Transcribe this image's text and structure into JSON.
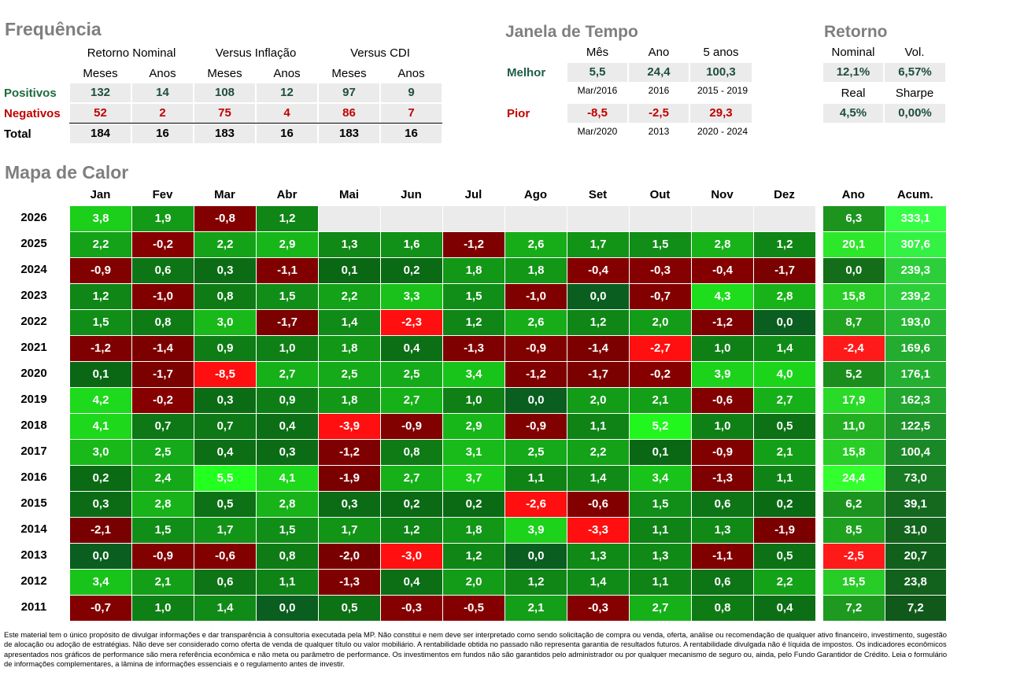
{
  "frequencia": {
    "title": "Frequência",
    "groups": [
      "Retorno Nominal",
      "Versus Inflação",
      "Versus CDI"
    ],
    "subheaders": [
      "Meses",
      "Anos",
      "Meses",
      "Anos",
      "Meses",
      "Anos"
    ],
    "rows": [
      {
        "label": "Positivos",
        "values": [
          "132",
          "14",
          "108",
          "12",
          "97",
          "9"
        ]
      },
      {
        "label": "Negativos",
        "values": [
          "52",
          "2",
          "75",
          "4",
          "86",
          "7"
        ]
      },
      {
        "label": "Total",
        "values": [
          "184",
          "16",
          "183",
          "16",
          "183",
          "16"
        ]
      }
    ]
  },
  "janela": {
    "title": "Janela de Tempo",
    "headers": [
      "Mês",
      "Ano",
      "5 anos"
    ],
    "melhor": {
      "label": "Melhor",
      "values": [
        "5,5",
        "24,4",
        "100,3"
      ],
      "dates": [
        "Mar/2016",
        "2016",
        "2015 - 2019"
      ]
    },
    "pior": {
      "label": "Pior",
      "values": [
        "-8,5",
        "-2,5",
        "29,3"
      ],
      "dates": [
        "Mar/2020",
        "2013",
        "2020 - 2024"
      ]
    }
  },
  "retorno": {
    "title": "Retorno",
    "h1": [
      "Nominal",
      "Vol."
    ],
    "v1": [
      "12,1%",
      "6,57%"
    ],
    "h2": [
      "Real",
      "Sharpe"
    ],
    "v2": [
      "4,5%",
      "0,00%"
    ]
  },
  "chart_data": {
    "type": "heatmap",
    "title": "Mapa de Calor",
    "columns": [
      "Jan",
      "Fev",
      "Mar",
      "Abr",
      "Mai",
      "Jun",
      "Jul",
      "Ago",
      "Set",
      "Out",
      "Nov",
      "Dez"
    ],
    "summary_columns": [
      "Ano",
      "Acum."
    ],
    "rows": [
      {
        "year": "2026",
        "values": [
          "3,8",
          "1,9",
          "-0,8",
          "1,2",
          "",
          "",
          "",
          "",
          "",
          "",
          "",
          ""
        ],
        "ano": "6,3",
        "acum": "333,1"
      },
      {
        "year": "2025",
        "values": [
          "2,2",
          "-0,2",
          "2,2",
          "2,9",
          "1,3",
          "1,6",
          "-1,2",
          "2,6",
          "1,7",
          "1,5",
          "2,8",
          "1,2"
        ],
        "ano": "20,1",
        "acum": "307,6"
      },
      {
        "year": "2024",
        "values": [
          "-0,9",
          "0,6",
          "0,3",
          "-1,1",
          "0,1",
          "0,2",
          "1,8",
          "1,8",
          "-0,4",
          "-0,3",
          "-0,4",
          "-1,7"
        ],
        "ano": "0,0",
        "acum": "239,3"
      },
      {
        "year": "2023",
        "values": [
          "1,2",
          "-1,0",
          "0,8",
          "1,5",
          "2,2",
          "3,3",
          "1,5",
          "-1,0",
          "0,0",
          "-0,7",
          "4,3",
          "2,8"
        ],
        "ano": "15,8",
        "acum": "239,2"
      },
      {
        "year": "2022",
        "values": [
          "1,5",
          "0,8",
          "3,0",
          "-1,7",
          "1,4",
          "-2,3",
          "1,2",
          "2,6",
          "1,2",
          "2,0",
          "-1,2",
          "0,0"
        ],
        "ano": "8,7",
        "acum": "193,0"
      },
      {
        "year": "2021",
        "values": [
          "-1,2",
          "-1,4",
          "0,9",
          "1,0",
          "1,8",
          "0,4",
          "-1,3",
          "-0,9",
          "-1,4",
          "-2,7",
          "1,0",
          "1,4"
        ],
        "ano": "-2,4",
        "acum": "169,6"
      },
      {
        "year": "2020",
        "values": [
          "0,1",
          "-1,7",
          "-8,5",
          "2,7",
          "2,5",
          "2,5",
          "3,4",
          "-1,2",
          "-1,7",
          "-0,2",
          "3,9",
          "4,0"
        ],
        "ano": "5,2",
        "acum": "176,1"
      },
      {
        "year": "2019",
        "values": [
          "4,2",
          "-0,2",
          "0,3",
          "0,9",
          "1,8",
          "2,7",
          "1,0",
          "0,0",
          "2,0",
          "2,1",
          "-0,6",
          "2,7"
        ],
        "ano": "17,9",
        "acum": "162,3"
      },
      {
        "year": "2018",
        "values": [
          "4,1",
          "0,7",
          "0,7",
          "0,4",
          "-3,9",
          "-0,9",
          "2,9",
          "-0,9",
          "1,1",
          "5,2",
          "1,0",
          "0,5"
        ],
        "ano": "11,0",
        "acum": "122,5"
      },
      {
        "year": "2017",
        "values": [
          "3,0",
          "2,5",
          "0,4",
          "0,3",
          "-1,2",
          "0,8",
          "3,1",
          "2,5",
          "2,2",
          "0,1",
          "-0,9",
          "2,1"
        ],
        "ano": "15,8",
        "acum": "100,4"
      },
      {
        "year": "2016",
        "values": [
          "0,2",
          "2,4",
          "5,5",
          "4,1",
          "-1,9",
          "2,7",
          "3,7",
          "1,1",
          "1,4",
          "3,4",
          "-1,3",
          "1,1"
        ],
        "ano": "24,4",
        "acum": "73,0"
      },
      {
        "year": "2015",
        "values": [
          "0,3",
          "2,8",
          "0,5",
          "2,8",
          "0,3",
          "0,2",
          "0,2",
          "-2,6",
          "-0,6",
          "1,5",
          "0,6",
          "0,2"
        ],
        "ano": "6,2",
        "acum": "39,1"
      },
      {
        "year": "2014",
        "values": [
          "-2,1",
          "1,5",
          "1,7",
          "1,5",
          "1,7",
          "1,2",
          "1,8",
          "3,9",
          "-3,3",
          "1,1",
          "1,3",
          "-1,9"
        ],
        "ano": "8,5",
        "acum": "31,0"
      },
      {
        "year": "2013",
        "values": [
          "0,0",
          "-0,9",
          "-0,6",
          "0,8",
          "-2,0",
          "-3,0",
          "1,2",
          "0,0",
          "1,3",
          "1,3",
          "-1,1",
          "0,5"
        ],
        "ano": "-2,5",
        "acum": "20,7"
      },
      {
        "year": "2012",
        "values": [
          "3,4",
          "2,1",
          "0,6",
          "1,1",
          "-1,3",
          "0,4",
          "2,0",
          "1,2",
          "1,4",
          "1,1",
          "0,6",
          "2,2"
        ],
        "ano": "15,5",
        "acum": "23,8"
      },
      {
        "year": "2011",
        "values": [
          "-0,7",
          "1,0",
          "1,4",
          "0,0",
          "0,5",
          "-0,3",
          "-0,5",
          "2,1",
          "-0,3",
          "2,7",
          "0,8",
          "0,4"
        ],
        "ano": "7,2",
        "acum": "7,2"
      }
    ]
  },
  "disclaimer": "Este material tem o único propósito de divulgar informações e dar transparência à consultoria executada pela MP. Não constitui e nem deve ser interpretado como sendo solicitação de compra ou venda, oferta, análise ou recomendação de qualquer ativo financeiro, investimento, sugestão de alocação ou adoção de estratégias. Não deve ser considerado como oferta de venda de qualquer título ou valor mobiliário. A rentabilidade obtida no passado não representa garantia de resultados futuros. A rentabilidade divulgada não é líquida de impostos. Os indicadores econômicos apresentados nos gráficos de performance são mera referência econômica e não meta ou parâmetro de performance. Os investimentos em fundos não são garantidos pelo administrador ou por qualquer mecanismo de seguro ou, ainda, pelo Fundo Garantidor de Crédito. Leia o formulário de informações complementares, a lâmina de informações essenciais e o regulamento antes de investir."
}
